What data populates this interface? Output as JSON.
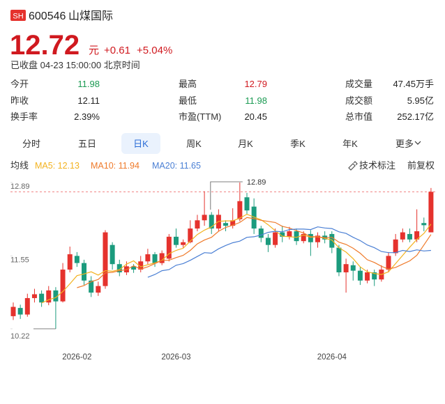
{
  "header": {
    "exchange": "SH",
    "code": "600546",
    "name": "山煤国际",
    "price": "12.72",
    "unit": "元",
    "change": "+0.61",
    "change_pct": "+5.04%",
    "status": "已收盘 04-23 15:00:00 北京时间"
  },
  "stats": [
    [
      {
        "label": "今开",
        "value": "11.98",
        "tone": "down"
      },
      {
        "label": "最高",
        "value": "12.79",
        "tone": "up"
      },
      {
        "label": "成交量",
        "value": "47.45万手",
        "tone": "flat"
      }
    ],
    [
      {
        "label": "昨收",
        "value": "12.11",
        "tone": "flat"
      },
      {
        "label": "最低",
        "value": "11.98",
        "tone": "down"
      },
      {
        "label": "成交额",
        "value": "5.95亿",
        "tone": "flat"
      }
    ],
    [
      {
        "label": "换手率",
        "value": "2.39%",
        "tone": "flat"
      },
      {
        "label": "市盈(TTM)",
        "value": "20.45",
        "tone": "flat"
      },
      {
        "label": "总市值",
        "value": "252.17亿",
        "tone": "flat"
      }
    ]
  ],
  "tabs": [
    "分时",
    "五日",
    "日K",
    "周K",
    "月K",
    "季K",
    "年K",
    "更多"
  ],
  "active_tab": 2,
  "ma_title": "均线",
  "tools": [
    "技术标注",
    "前复权"
  ],
  "chart_data": {
    "type": "candlestick",
    "categories": [
      null,
      null,
      null,
      null,
      null,
      null,
      null,
      null,
      null,
      "2026-02",
      null,
      null,
      null,
      null,
      null,
      null,
      null,
      null,
      null,
      null,
      null,
      null,
      null,
      "2026-03",
      null,
      null,
      null,
      null,
      null,
      null,
      null,
      null,
      null,
      null,
      null,
      null,
      null,
      null,
      null,
      null,
      null,
      null,
      null,
      null,
      null,
      "2026-04",
      null,
      null,
      null,
      null,
      null,
      null,
      null,
      null,
      null,
      null,
      null,
      null,
      null,
      null
    ],
    "open": [
      10.45,
      10.6,
      10.48,
      10.78,
      10.86,
      10.7,
      10.92,
      10.72,
      11.3,
      11.55,
      11.42,
      11.1,
      10.88,
      11.0,
      11.75,
      11.4,
      11.25,
      11.36,
      11.3,
      11.45,
      11.58,
      11.42,
      11.5,
      11.9,
      11.75,
      11.8,
      12.05,
      12.2,
      12.3,
      12.05,
      12.15,
      12.1,
      12.22,
      12.62,
      12.45,
      12.05,
      11.88,
      11.75,
      11.98,
      11.9,
      12.0,
      11.82,
      11.95,
      11.8,
      11.92,
      11.95,
      11.7,
      11.25,
      11.38,
      11.28,
      11.1,
      11.25,
      11.12,
      11.3,
      11.6,
      11.85,
      11.95,
      11.85,
      12.15,
      11.98
    ],
    "high": [
      10.7,
      10.66,
      10.86,
      10.95,
      10.92,
      11.0,
      10.98,
      11.42,
      11.72,
      11.62,
      11.48,
      11.18,
      11.08,
      12.02,
      11.8,
      11.48,
      11.45,
      11.4,
      11.55,
      11.68,
      11.62,
      11.65,
      11.95,
      12.05,
      11.85,
      12.2,
      12.3,
      12.73,
      12.35,
      12.4,
      12.2,
      12.42,
      12.89,
      12.7,
      12.6,
      12.1,
      11.95,
      12.05,
      12.1,
      12.08,
      12.05,
      12.0,
      12.02,
      11.98,
      12.0,
      12.0,
      11.75,
      11.5,
      11.45,
      11.35,
      11.3,
      11.3,
      11.38,
      11.62,
      11.95,
      12.05,
      12.05,
      12.4,
      12.25,
      12.79
    ],
    "low": [
      10.38,
      10.4,
      10.44,
      10.7,
      10.62,
      10.65,
      10.22,
      10.7,
      11.25,
      11.35,
      11.02,
      10.8,
      10.82,
      10.95,
      11.3,
      11.18,
      11.2,
      11.24,
      11.25,
      11.4,
      11.35,
      11.38,
      11.45,
      11.7,
      11.7,
      11.78,
      12.0,
      12.1,
      11.95,
      12.0,
      12.0,
      12.05,
      12.18,
      12.3,
      11.95,
      11.8,
      11.62,
      11.7,
      11.8,
      11.85,
      11.75,
      11.78,
      11.55,
      11.7,
      11.78,
      11.6,
      11.18,
      10.88,
      11.1,
      11.02,
      11.05,
      11.0,
      11.08,
      11.25,
      11.55,
      11.8,
      11.8,
      11.8,
      12.0,
      11.98
    ],
    "close": [
      10.62,
      10.48,
      10.78,
      10.85,
      10.7,
      10.92,
      10.72,
      11.3,
      11.58,
      11.42,
      11.1,
      10.88,
      11.0,
      11.98,
      11.4,
      11.25,
      11.36,
      11.3,
      11.45,
      11.58,
      11.42,
      11.6,
      11.9,
      11.75,
      11.8,
      12.05,
      12.2,
      12.3,
      12.05,
      12.3,
      12.1,
      12.2,
      12.55,
      12.38,
      12.05,
      11.88,
      11.75,
      11.98,
      11.9,
      12.0,
      11.82,
      11.95,
      11.8,
      11.92,
      11.85,
      11.7,
      11.25,
      11.4,
      11.28,
      11.1,
      11.25,
      11.12,
      11.3,
      11.55,
      11.85,
      11.98,
      11.85,
      12.0,
      12.11,
      12.72
    ],
    "up_color": "#e5322d",
    "down_color": "#1b9b7d",
    "series": [
      {
        "name": "MA5: 12.13",
        "color": "#f3b21f",
        "values": [
          null,
          null,
          null,
          null,
          10.69,
          10.75,
          10.79,
          10.9,
          11.04,
          11.19,
          11.22,
          11.26,
          11.2,
          11.28,
          11.27,
          11.3,
          11.4,
          11.46,
          11.35,
          11.39,
          11.42,
          11.47,
          11.59,
          11.65,
          11.69,
          11.82,
          11.94,
          12.02,
          12.08,
          12.18,
          12.19,
          12.19,
          12.24,
          12.31,
          12.26,
          12.21,
          12.12,
          12.01,
          11.91,
          11.9,
          11.89,
          11.93,
          11.89,
          11.9,
          11.87,
          11.84,
          11.7,
          11.62,
          11.5,
          11.35,
          11.26,
          11.23,
          11.21,
          11.26,
          11.41,
          11.56,
          11.71,
          11.85,
          11.96,
          12.13
        ]
      },
      {
        "name": "MA10: 11.94",
        "color": "#ef7a2a",
        "values": [
          null,
          null,
          null,
          null,
          null,
          null,
          null,
          null,
          null,
          10.97,
          11.01,
          11.08,
          11.12,
          11.24,
          11.25,
          11.28,
          11.3,
          11.37,
          11.31,
          11.35,
          11.41,
          11.47,
          11.47,
          11.52,
          11.56,
          11.65,
          11.77,
          11.84,
          11.89,
          12.0,
          12.07,
          12.11,
          12.16,
          12.25,
          12.23,
          12.2,
          12.18,
          12.16,
          12.09,
          12.06,
          12.01,
          11.97,
          11.9,
          11.9,
          11.88,
          11.89,
          11.8,
          11.76,
          11.69,
          11.6,
          11.48,
          11.43,
          11.36,
          11.31,
          11.34,
          11.4,
          11.46,
          11.56,
          11.75,
          11.94
        ]
      },
      {
        "name": "MA20: 11.65",
        "color": "#4a7fd4",
        "values": [
          null,
          null,
          null,
          null,
          null,
          null,
          null,
          null,
          null,
          null,
          null,
          null,
          null,
          null,
          null,
          null,
          null,
          null,
          null,
          11.16,
          11.21,
          11.28,
          11.3,
          11.38,
          11.41,
          11.47,
          11.54,
          11.61,
          11.6,
          11.68,
          11.74,
          11.79,
          11.82,
          11.89,
          11.9,
          11.93,
          11.98,
          12.0,
          11.99,
          12.03,
          12.04,
          12.04,
          12.03,
          12.08,
          12.06,
          12.05,
          11.99,
          11.96,
          11.89,
          11.83,
          11.75,
          11.7,
          11.63,
          11.61,
          11.61,
          11.65,
          11.63,
          11.66,
          11.64,
          11.65
        ]
      }
    ],
    "ylim": [
      10.22,
      12.89
    ],
    "yticks": [
      12.89,
      11.55,
      10.22
    ]
  }
}
